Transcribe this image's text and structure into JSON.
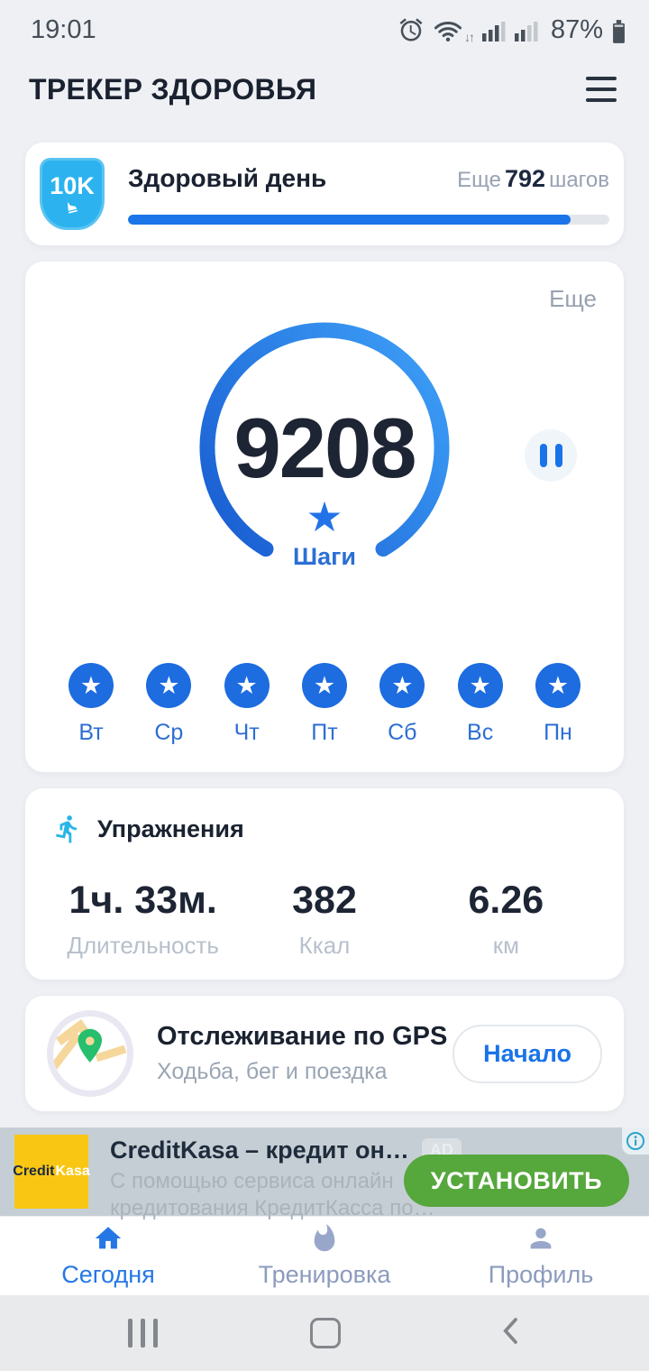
{
  "status_bar": {
    "time": "19:01",
    "battery_percent": "87%"
  },
  "header": {
    "title": "ТРЕКЕР ЗДОРОВЬЯ"
  },
  "goal_card": {
    "badge_label": "10K",
    "title": "Здоровый день",
    "remaining_prefix": "Еще",
    "remaining_value": "792",
    "remaining_suffix": "шагов",
    "progress_percent": 92
  },
  "steps_card": {
    "more_link": "Еще",
    "steps_value": "9208",
    "steps_label": "Шаги",
    "star_glyph": "★",
    "week_days": [
      "Вт",
      "Ср",
      "Чт",
      "Пт",
      "Сб",
      "Вс",
      "Пн"
    ]
  },
  "exercise_card": {
    "title": "Упражнения",
    "stats": [
      {
        "value": "1ч. 33м.",
        "label": "Длительность"
      },
      {
        "value": "382",
        "label": "Ккал"
      },
      {
        "value": "6.26",
        "label": "км"
      }
    ]
  },
  "gps_card": {
    "title": "Отслеживание по GPS",
    "subtitle": "Ходьба, бег и поездка",
    "button_label": "Начало"
  },
  "ad_banner": {
    "logo_text_1": "Credit",
    "logo_text_2": "Kasa",
    "title": "CreditKasa – кредит он…",
    "ad_badge": "AD",
    "description_line_1": "С помощью сервиса онлайн",
    "description_line_2": "кредитования КредитКасса по…",
    "install_button": "УСТАНОВИТЬ"
  },
  "bottom_nav": {
    "items": [
      "Сегодня",
      "Тренировка",
      "Профиль"
    ],
    "active_index": 0
  },
  "icons": {
    "status": [
      "alarm-icon",
      "wifi-icon",
      "signal-icon",
      "battery-icon"
    ],
    "nav": [
      "home-icon",
      "flame-icon",
      "person-icon"
    ]
  },
  "colors": {
    "accent_blue": "#1a73e8",
    "ring_gradient_start": "#1b61d4",
    "ring_gradient_end": "#3d9ff7",
    "badge_blue": "#2cb3ef",
    "day_circle_blue": "#1d6ce0",
    "runner_cyan": "#29b5e8",
    "pin_green": "#27bf6d",
    "install_green": "#56a73c",
    "ad_background": "#c5ced4",
    "logo_yellow": "#f9c713",
    "app_background": "#eef0f4"
  }
}
